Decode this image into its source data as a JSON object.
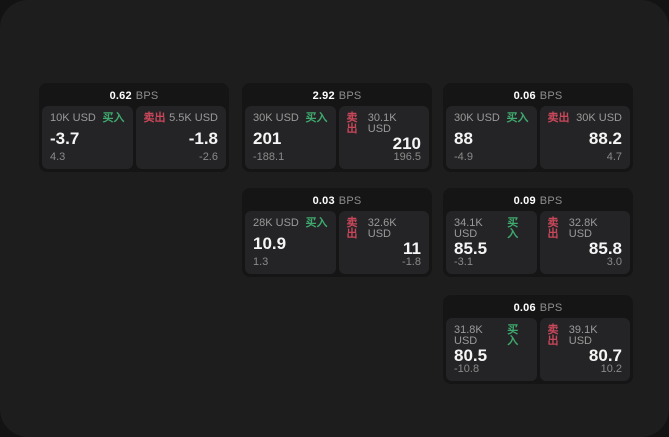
{
  "colors": {
    "buy": "#3fa96e",
    "sell": "#c9475a"
  },
  "labels": {
    "buy": "买入",
    "sell": "卖出",
    "bps_unit": "BPS"
  },
  "cards": [
    {
      "bps": "0.62",
      "buy": {
        "amount": "10K USD",
        "price": "-3.7",
        "delta": "4.3"
      },
      "sell": {
        "amount": "5.5K USD",
        "price": "-1.8",
        "delta": "-2.6"
      }
    },
    {
      "bps": "2.92",
      "buy": {
        "amount": "30K USD",
        "price": "201",
        "delta": "-188.1"
      },
      "sell": {
        "amount": "30.1K USD",
        "price": "210",
        "delta": "196.5"
      }
    },
    {
      "bps": "0.06",
      "buy": {
        "amount": "30K USD",
        "price": "88",
        "delta": "-4.9"
      },
      "sell": {
        "amount": "30K USD",
        "price": "88.2",
        "delta": "4.7"
      }
    },
    {
      "bps": "0.03",
      "buy": {
        "amount": "28K USD",
        "price": "10.9",
        "delta": "1.3"
      },
      "sell": {
        "amount": "32.6K USD",
        "price": "11",
        "delta": "-1.8"
      }
    },
    {
      "bps": "0.09",
      "buy": {
        "amount": "34.1K USD",
        "price": "85.5",
        "delta": "-3.1"
      },
      "sell": {
        "amount": "32.8K USD",
        "price": "85.8",
        "delta": "3.0"
      }
    },
    {
      "bps": "0.06",
      "buy": {
        "amount": "31.8K USD",
        "price": "80.5",
        "delta": "-10.8"
      },
      "sell": {
        "amount": "39.1K USD",
        "price": "80.7",
        "delta": "10.2"
      }
    }
  ]
}
